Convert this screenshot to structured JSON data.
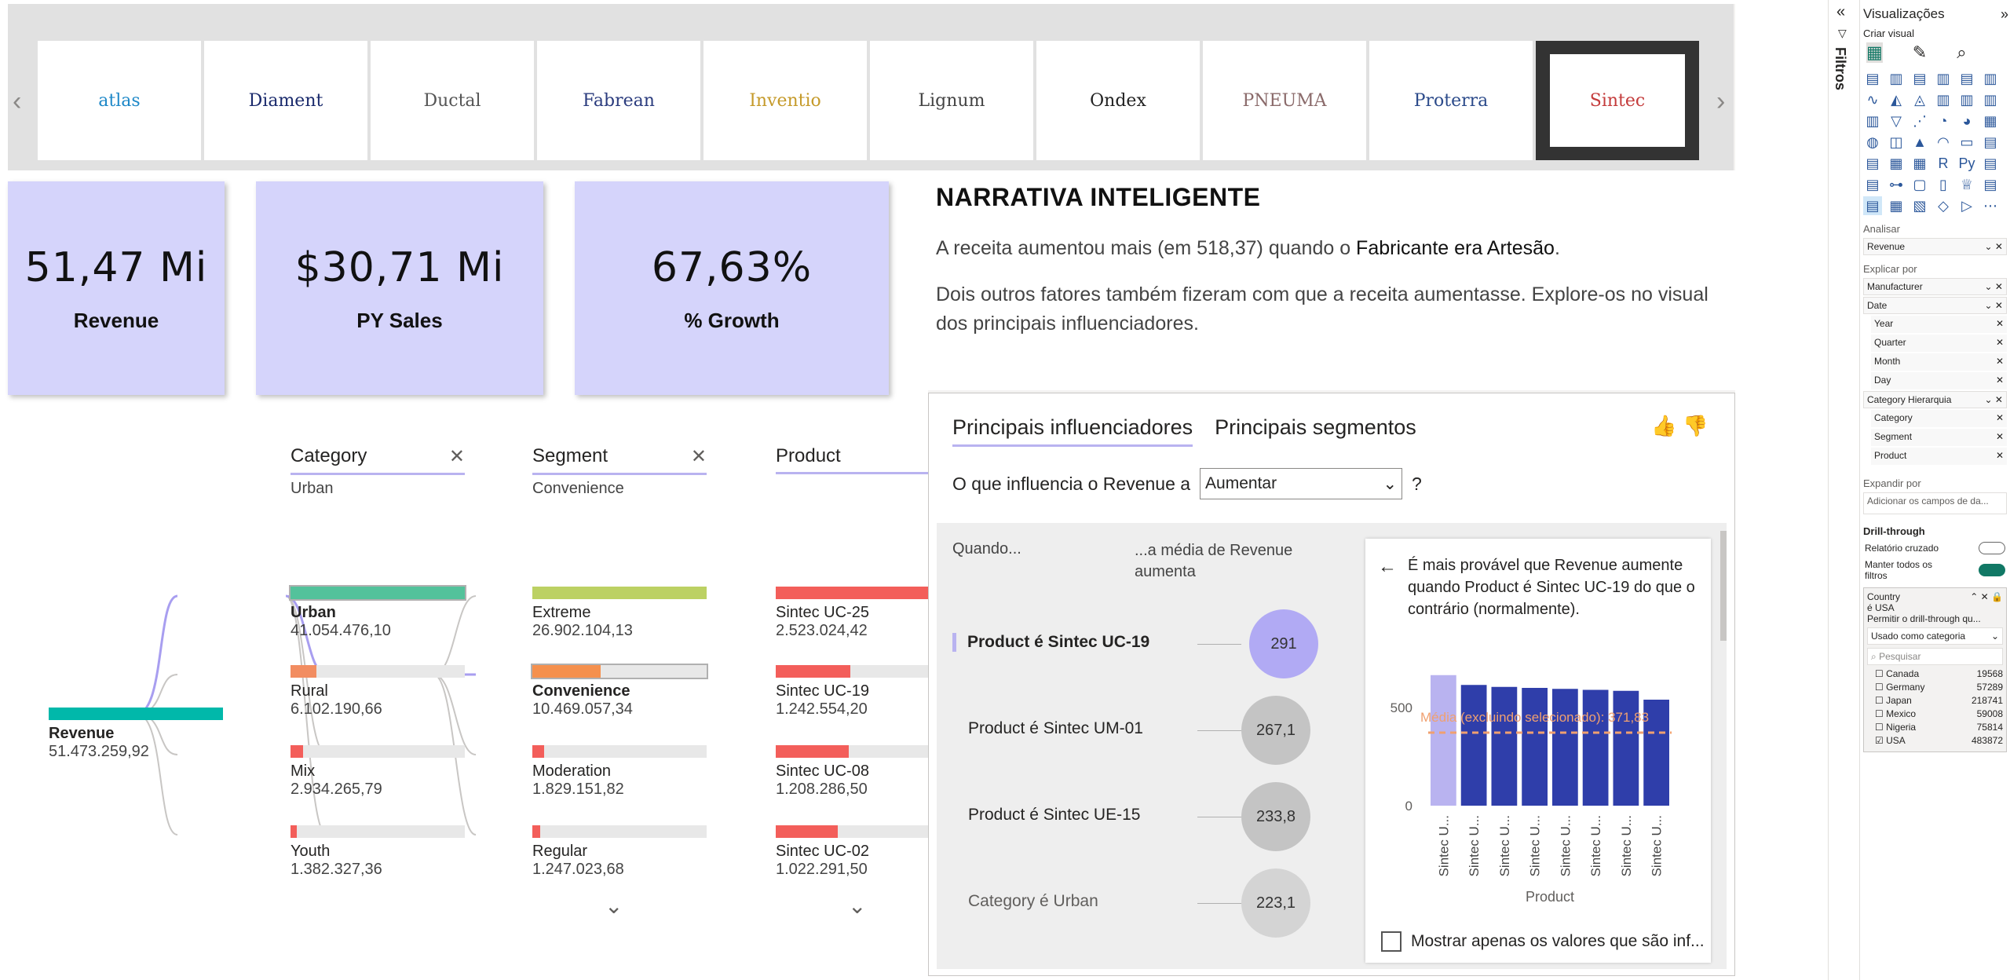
{
  "logos": [
    "atlas",
    "Diament",
    "Ductal",
    "Fabrean",
    "Inventio",
    "Lignum",
    "Ondex",
    "PNEUMA",
    "Proterra",
    "Sintec"
  ],
  "kpis": [
    {
      "value": "51,47 Mi",
      "label": "Revenue"
    },
    {
      "value": "$30,71 Mi",
      "label": "PY Sales"
    },
    {
      "value": "67,63%",
      "label": "% Growth"
    }
  ],
  "narrative": {
    "title": "NARRATIVA INTELIGENTE",
    "p1_pre": "A receita aumentou mais (em 518,37) quando o ",
    "p1_hl": "Fabricante era Artesão",
    "p1_post": ".",
    "p2": "Dois outros fatores também fizeram com que a receita aumentasse. Explore-os no visual dos principais influenciadores."
  },
  "decomp": {
    "root": {
      "name": "Revenue",
      "value": "51.473.259,92"
    },
    "columns": [
      {
        "title": "Category",
        "selected": "Urban",
        "close": "✕"
      },
      {
        "title": "Segment",
        "selected": "Convenience",
        "close": "✕"
      },
      {
        "title": "Product",
        "selected": "",
        "close": ""
      }
    ],
    "category": [
      {
        "name": "Urban",
        "value": "41.054.476,10",
        "pct": 1.0
      },
      {
        "name": "Rural",
        "value": "6.102.190,66",
        "pct": 0.15
      },
      {
        "name": "Mix",
        "value": "2.934.265,79",
        "pct": 0.07
      },
      {
        "name": "Youth",
        "value": "1.382.327,36",
        "pct": 0.034
      }
    ],
    "segment": [
      {
        "name": "Extreme",
        "value": "26.902.104,13",
        "pct": 1.0
      },
      {
        "name": "Convenience",
        "value": "10.469.057,34",
        "pct": 0.39
      },
      {
        "name": "Moderation",
        "value": "1.829.151,82",
        "pct": 0.068
      },
      {
        "name": "Regular",
        "value": "1.247.023,68",
        "pct": 0.046
      }
    ],
    "product": [
      {
        "name": "Sintec UC-25",
        "value": "2.523.024,42",
        "pct": 1.0
      },
      {
        "name": "Sintec UC-19",
        "value": "1.242.554,20",
        "pct": 0.49
      },
      {
        "name": "Sintec UC-08",
        "value": "1.208.286,50",
        "pct": 0.48
      },
      {
        "name": "Sintec UC-02",
        "value": "1.022.291,50",
        "pct": 0.405
      }
    ]
  },
  "ki": {
    "tab1": "Principais influenciadores",
    "tab2": "Principais segmentos",
    "question": "O que influencia o Revenue a",
    "select": "Aumentar",
    "help": "?",
    "col_when": "Quando...",
    "col_avg": "...a média de Revenue aumenta",
    "rows": [
      {
        "label": "Product é Sintec UC-19",
        "value": "291"
      },
      {
        "label": "Product é Sintec UM-01",
        "value": "267,1"
      },
      {
        "label": "Product é Sintec UE-15",
        "value": "233,8"
      },
      {
        "label": "Category é Urban",
        "value": "223,1"
      }
    ],
    "panel_text": "É mais provável que Revenue aumente quando Product é Sintec UC-19 do que o contrário (normalmente).",
    "avg_label": "Média (excluindo selecionado): 371,83",
    "checkbox": "Mostrar apenas os valores que são inf..."
  },
  "chart_data": {
    "type": "bar",
    "categories": [
      "Sintec U...",
      "Sintec U...",
      "Sintec U...",
      "Sintec U...",
      "Sintec U...",
      "Sintec U...",
      "Sintec U...",
      "Sintec U..."
    ],
    "values": [
      665,
      615,
      605,
      600,
      595,
      590,
      585,
      540
    ],
    "highlighted_index": 0,
    "average": 371.83,
    "xlabel": "Product",
    "ylabel": "",
    "yticks": [
      0,
      500
    ],
    "ylim": [
      0,
      700
    ],
    "colors": {
      "highlight": "#b9b3f0",
      "bar": "#2f3eaa",
      "average": "#f0a070"
    }
  },
  "viz": {
    "title": "Visualizações",
    "criar": "Criar visual",
    "analisar": "Analisar",
    "analisar_field": "Revenue",
    "explicar": "Explicar por",
    "explain_fields": [
      "Manufacturer",
      "Date"
    ],
    "date_children": [
      "Year",
      "Quarter",
      "Month",
      "Day"
    ],
    "hier": "Category Hierarquia",
    "hier_children": [
      "Category",
      "Segment",
      "Product"
    ],
    "expandir": "Expandir por",
    "expandir_placeholder": "Adicionar os campos de da...",
    "drill": "Drill-through",
    "cross": "Relatório cruzado",
    "keep": "Manter todos os filtros",
    "country_title": "Country",
    "country_sub": "é USA",
    "country_drill": "Permitir o drill-through qu...",
    "country_select": "Usado como categoria",
    "search": "Pesquisar",
    "countries": [
      {
        "name": "Canada",
        "value": "19568",
        "checked": false
      },
      {
        "name": "Germany",
        "value": "57289",
        "checked": false
      },
      {
        "name": "Japan",
        "value": "218741",
        "checked": false
      },
      {
        "name": "Mexico",
        "value": "59008",
        "checked": false
      },
      {
        "name": "Nigeria",
        "value": "75814",
        "checked": false
      },
      {
        "name": "USA",
        "value": "483872",
        "checked": true
      }
    ]
  },
  "filters_label": "Filtros"
}
